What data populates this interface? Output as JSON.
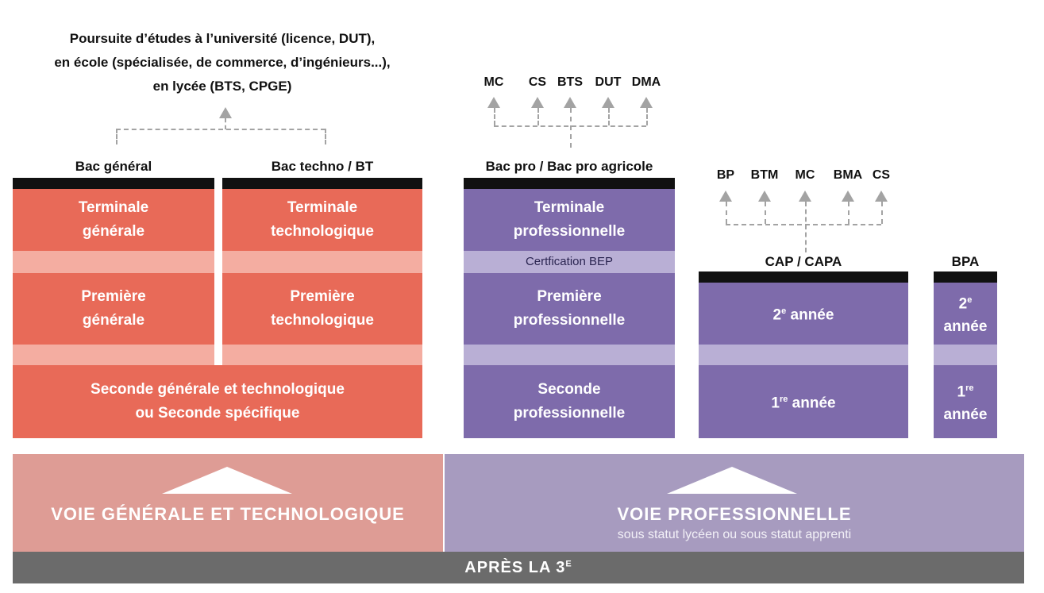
{
  "top_note": {
    "line1": "Poursuite d’études à l’université (licence, DUT),",
    "line2": "en école (spécialisée, de commerce, d’ingénieurs...),",
    "line3": "en lycée (BTS, CPGE)"
  },
  "left": {
    "bac_general": "Bac général",
    "bac_techno": "Bac techno / BT",
    "terminale_generale": "Terminale\ngénérale",
    "terminale_techno": "Terminale\ntechnologique",
    "premiere_generale": "Première\ngénérale",
    "premiere_techno": "Première\ntechnologique",
    "seconde": "Seconde générale et technologique\nou Seconde  spécifique"
  },
  "bac_pro": {
    "title": "Bac pro / Bac pro agricole",
    "outcomes": [
      "MC",
      "CS",
      "BTS",
      "DUT",
      "DMA"
    ],
    "terminale": "Terminale\nprofessionnelle",
    "certification": "Certfication BEP",
    "premiere": "Première\nprofessionnelle",
    "seconde": "Seconde\nprofessionnelle"
  },
  "cap": {
    "title": "CAP / CAPA",
    "outcomes": [
      "BP",
      "BTM",
      "MC",
      "BMA",
      "CS"
    ],
    "year2_num": "2",
    "year2_sup": "e",
    "year2_word": " année",
    "year1_num": "1",
    "year1_sup": "re",
    "year1_word": " année"
  },
  "bpa": {
    "title": "BPA",
    "year2_num": "2",
    "year2_sup": "e",
    "year2_word": "année",
    "year1_num": "1",
    "year1_sup": "re",
    "year1_word": "année"
  },
  "bands": {
    "general_title": "VOIE GÉNÉRALE ET TECHNOLOGIQUE",
    "pro_title": "VOIE PROFESSIONNELLE",
    "pro_subtitle": "sous statut lycéen ou sous statut apprenti",
    "general_color": "#de9c95",
    "pro_color": "#a79bbf"
  },
  "bottom": {
    "text_main": "APRÈS LA 3",
    "text_sup": "E"
  },
  "colors": {
    "red": "#e86a58",
    "pink": "#f4ada1",
    "purple": "#7e6bab",
    "lavender": "#b9afd5",
    "gray": "#6b6b6b"
  }
}
